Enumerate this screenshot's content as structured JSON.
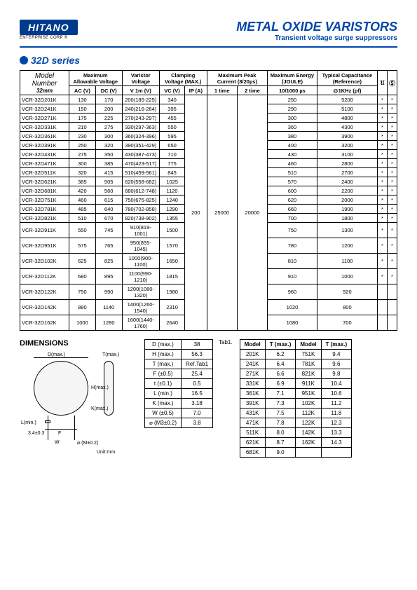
{
  "header": {
    "logo": "HITANO",
    "logo_sub": "ENTERPRISE CORP ®",
    "title": "METAL OXIDE VARISTORS",
    "subtitle": "Transient voltage surge suppressors"
  },
  "series": "32D series",
  "main_table": {
    "head1": [
      "Model Number",
      "Maximum Allowable Voltage",
      "Varistor Voltage",
      "Clamping Voltage (MAX.)",
      "Maximum Peak Current (8/20µs)",
      "Maximum Energy (JOULE)",
      "Typical Capacitance (Reference)"
    ],
    "head_model_sub": "32mm",
    "head2": [
      "AC (V)",
      "DC (V)",
      "V 1m (V)",
      "VC (V)",
      "IP (A)",
      "1 time",
      "2 time",
      "10/1000 µs",
      "@1KHz (pf)"
    ],
    "cert_col1": "UL",
    "cert_col2": "CSA",
    "ip_val": "200",
    "t1_val": "25000",
    "t2_val": "20000",
    "rows": [
      [
        "VCR-32D201K",
        "130",
        "170",
        "200(185-225)",
        "340",
        "250",
        "5200",
        "*",
        "*"
      ],
      [
        "VCR-32D241K",
        "150",
        "200",
        "240(216-264)",
        "395",
        "290",
        "5100",
        "*",
        "*"
      ],
      [
        "VCR-32D271K",
        "175",
        "225",
        "270(243-297)",
        "455",
        "300",
        "4800",
        "*",
        "*"
      ],
      [
        "VCR-32D331K",
        "210",
        "275",
        "330(297-363)",
        "550",
        "360",
        "4300",
        "*",
        "*"
      ],
      [
        "VCR-32D361K",
        "230",
        "300",
        "360(324-396)",
        "595",
        "380",
        "3900",
        "*",
        "*"
      ],
      [
        "VCR-32D391K",
        "250",
        "320",
        "390(351-429)",
        "650",
        "400",
        "3200",
        "*",
        "*"
      ],
      [
        "VCR-32D431K",
        "275",
        "350",
        "430(387-473)",
        "710",
        "430",
        "3100",
        "*",
        "*"
      ],
      [
        "VCR-32D471K",
        "300",
        "385",
        "470(423-517)",
        "775",
        "460",
        "2800",
        "*",
        "*"
      ],
      [
        "VCR-32D511K",
        "320",
        "415",
        "510(459-561)",
        "845",
        "510",
        "2700",
        "*",
        "*"
      ],
      [
        "VCR-32D621K",
        "385",
        "505",
        "620(558-682)",
        "1025",
        "570",
        "2400",
        "*",
        "*"
      ],
      [
        "VCR-32D681K",
        "420",
        "560",
        "680(612-748)",
        "1120",
        "600",
        "2200",
        "*",
        "*"
      ],
      [
        "VCR-32D751K",
        "460",
        "615",
        "750(675-825)",
        "1240",
        "620",
        "2000",
        "*",
        "*"
      ],
      [
        "VCR-32D781K",
        "485",
        "640",
        "780(702-858)",
        "1290",
        "660",
        "1900",
        "*",
        "*"
      ],
      [
        "VCR-32D821K",
        "510",
        "670",
        "820(738-902)",
        "1355",
        "700",
        "1800",
        "*",
        "*"
      ],
      [
        "VCR-32D911K",
        "550",
        "745",
        "910(819-1001)",
        "1500",
        "750",
        "1300",
        "*",
        "*"
      ],
      [
        "VCR-32D951K",
        "575",
        "765",
        "950(855-1045)",
        "1570",
        "780",
        "1200",
        "*",
        "*"
      ],
      [
        "VCR-32D102K",
        "625",
        "825",
        "1000(900-1100)",
        "1650",
        "810",
        "1100",
        "*",
        "*"
      ],
      [
        "VCR-32D112K",
        "680",
        "895",
        "1100(990-1210)",
        "1815",
        "910",
        "1000",
        "*",
        "*"
      ],
      [
        "VCR-32D122K",
        "750",
        "990",
        "1200(1080-1320)",
        "1980",
        "960",
        "920",
        "",
        ""
      ],
      [
        "VCR-32D142K",
        "880",
        "1140",
        "1400(1260-1540)",
        "2310",
        "1020",
        "800",
        "",
        ""
      ],
      [
        "VCR-32D162K",
        "1000",
        "1280",
        "1600(1440-1760)",
        "2640",
        "1080",
        "700",
        "",
        ""
      ]
    ]
  },
  "dimensions": {
    "label": "DIMENSIONS",
    "d_label": "D(max.)",
    "t_label": "T(max.)",
    "h_label": "H(max.)",
    "l_label": "L(min.)",
    "k_label": "K(max.)",
    "f_label": "F",
    "w_label": "W",
    "dia_label": "⌀ (M±0.2)",
    "tol": "3.4±0.3",
    "unit": "Unit:mm"
  },
  "dim_table": {
    "rows": [
      [
        "D (max.)",
        "38"
      ],
      [
        "H (max.)",
        "56.3"
      ],
      [
        "T (max.)",
        "Ref.Tab1"
      ],
      [
        "F (±0.5)",
        "25.4"
      ],
      [
        "t (±0.1)",
        "0.5"
      ],
      [
        "L (min.)",
        "16.5"
      ],
      [
        "K (max.)",
        "3.18"
      ],
      [
        "W (±0.5)",
        "7.0"
      ],
      [
        "⌀ (M3±0.2)",
        "3.8"
      ]
    ]
  },
  "tab1_label": "Tab1.",
  "tab1": {
    "head": [
      "Model",
      "T (max.)",
      "Model",
      "T (max.)"
    ],
    "rows": [
      [
        "201K",
        "6.2",
        "751K",
        "9.4"
      ],
      [
        "241K",
        "6.4",
        "781K",
        "9.6"
      ],
      [
        "271K",
        "6.6",
        "821K",
        "9.8"
      ],
      [
        "331K",
        "6.9",
        "911K",
        "10.4"
      ],
      [
        "361K",
        "7.1",
        "951K",
        "10.6"
      ],
      [
        "391K",
        "7.3",
        "102K",
        "11.2"
      ],
      [
        "431K",
        "7.5",
        "112K",
        "11.8"
      ],
      [
        "471K",
        "7.8",
        "122K",
        "12.3"
      ],
      [
        "511K",
        "8.0",
        "142K",
        "13.3"
      ],
      [
        "621K",
        "8.7",
        "162K",
        "14.3"
      ],
      [
        "681K",
        "9.0",
        "",
        ""
      ]
    ]
  }
}
